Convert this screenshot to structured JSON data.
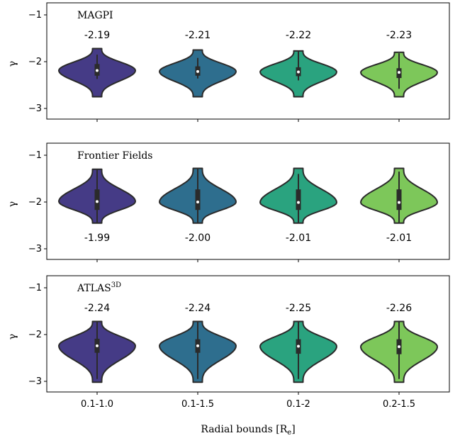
{
  "chart_data": {
    "type": "violin",
    "categories": [
      "0.1-1.0",
      "0.1-1.5",
      "0.1-2",
      "0.2-1.5"
    ],
    "xlabel": "Radial bounds [R",
    "xlabel_sub": "e",
    "xlabel_end": "]",
    "colors": [
      "#453b86",
      "#2e6e8e",
      "#2aa37f",
      "#7dc75a"
    ],
    "yticks": [
      "−1",
      "−2",
      "−3"
    ],
    "ylim": [
      -3.2,
      -0.7
    ],
    "panels": [
      {
        "title": "MAGPI",
        "ylabel": "γ",
        "annotation_position": "above",
        "median_labels": [
          "-2.19",
          "-2.21",
          "-2.22",
          "-2.23"
        ],
        "medians": [
          -2.19,
          -2.21,
          -2.22,
          -2.23
        ],
        "min": [
          -2.75,
          -2.75,
          -2.75,
          -2.75
        ],
        "max": [
          -1.72,
          -1.75,
          -1.77,
          -1.8
        ],
        "q1": [
          -2.3,
          -2.3,
          -2.31,
          -2.35
        ],
        "q3": [
          -2.05,
          -2.1,
          -2.12,
          -2.14
        ],
        "whisker_low": [
          -2.37,
          -2.36,
          -2.4,
          -2.58
        ],
        "whisker_high": [
          -1.85,
          -1.92,
          -1.78,
          -1.82
        ]
      },
      {
        "title": "Frontier Fields",
        "ylabel": "γ",
        "annotation_position": "below",
        "median_labels": [
          "-1.99",
          "-2.00",
          "-2.01",
          "-2.01"
        ],
        "medians": [
          -1.99,
          -2.0,
          -2.01,
          -2.01
        ],
        "min": [
          -2.45,
          -2.45,
          -2.45,
          -2.45
        ],
        "max": [
          -1.3,
          -1.28,
          -1.28,
          -1.28
        ],
        "q1": [
          -2.17,
          -2.17,
          -2.17,
          -2.17
        ],
        "q3": [
          -1.73,
          -1.73,
          -1.73,
          -1.73
        ],
        "whisker_low": [
          -2.45,
          -2.45,
          -2.45,
          -2.45
        ],
        "whisker_high": [
          -1.3,
          -1.28,
          -1.4,
          -1.35
        ]
      },
      {
        "title": "ATLAS",
        "title_sup": "3D",
        "ylabel": "γ",
        "annotation_position": "above",
        "median_labels": [
          "-2.24",
          "-2.24",
          "-2.25",
          "-2.26"
        ],
        "medians": [
          -2.24,
          -2.24,
          -2.25,
          -2.26
        ],
        "min": [
          -3.02,
          -3.02,
          -3.02,
          -3.02
        ],
        "max": [
          -1.72,
          -1.72,
          -1.72,
          -1.72
        ],
        "q1": [
          -2.39,
          -2.39,
          -2.41,
          -2.42
        ],
        "q3": [
          -2.09,
          -2.1,
          -2.1,
          -2.1
        ],
        "whisker_low": [
          -2.95,
          -2.95,
          -2.95,
          -2.95
        ],
        "whisker_high": [
          -1.72,
          -1.72,
          -1.72,
          -1.72
        ]
      }
    ]
  }
}
